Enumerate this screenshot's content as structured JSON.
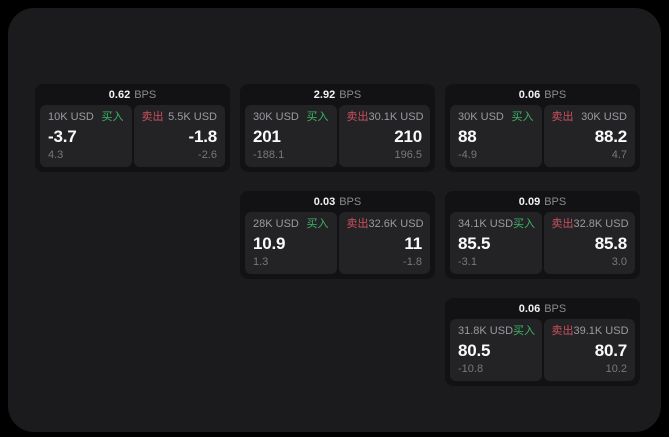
{
  "labels": {
    "bps_unit": "BPS",
    "buy": "买入",
    "sell": "卖出"
  },
  "colors": {
    "page_background": "#000000",
    "panel_background": "#1b1b1d",
    "card_background": "#121214",
    "tile_background": "#232326",
    "buy_accent": "#3db564",
    "sell_accent": "#c9515f",
    "price_text": "#fafafa",
    "muted_text": "#77777c"
  },
  "cards": [
    {
      "row": 1,
      "col": 1,
      "bps": "0.62",
      "buy": {
        "size": "10K USD",
        "price": "-3.7",
        "sub": "4.3"
      },
      "sell": {
        "size": "5.5K USD",
        "price": "-1.8",
        "sub": "-2.6"
      }
    },
    {
      "row": 1,
      "col": 2,
      "bps": "2.92",
      "buy": {
        "size": "30K USD",
        "price": "201",
        "sub": "-188.1"
      },
      "sell": {
        "size": "30.1K USD",
        "price": "210",
        "sub": "196.5"
      }
    },
    {
      "row": 1,
      "col": 3,
      "bps": "0.06",
      "buy": {
        "size": "30K USD",
        "price": "88",
        "sub": "-4.9"
      },
      "sell": {
        "size": "30K USD",
        "price": "88.2",
        "sub": "4.7"
      }
    },
    {
      "row": 2,
      "col": 2,
      "bps": "0.03",
      "buy": {
        "size": "28K USD",
        "price": "10.9",
        "sub": "1.3"
      },
      "sell": {
        "size": "32.6K USD",
        "price": "11",
        "sub": "-1.8"
      }
    },
    {
      "row": 2,
      "col": 3,
      "bps": "0.09",
      "buy": {
        "size": "34.1K USD",
        "price": "85.5",
        "sub": "-3.1"
      },
      "sell": {
        "size": "32.8K USD",
        "price": "85.8",
        "sub": "3.0"
      }
    },
    {
      "row": 3,
      "col": 3,
      "bps": "0.06",
      "buy": {
        "size": "31.8K USD",
        "price": "80.5",
        "sub": "-10.8"
      },
      "sell": {
        "size": "39.1K USD",
        "price": "80.7",
        "sub": "10.2"
      }
    }
  ]
}
